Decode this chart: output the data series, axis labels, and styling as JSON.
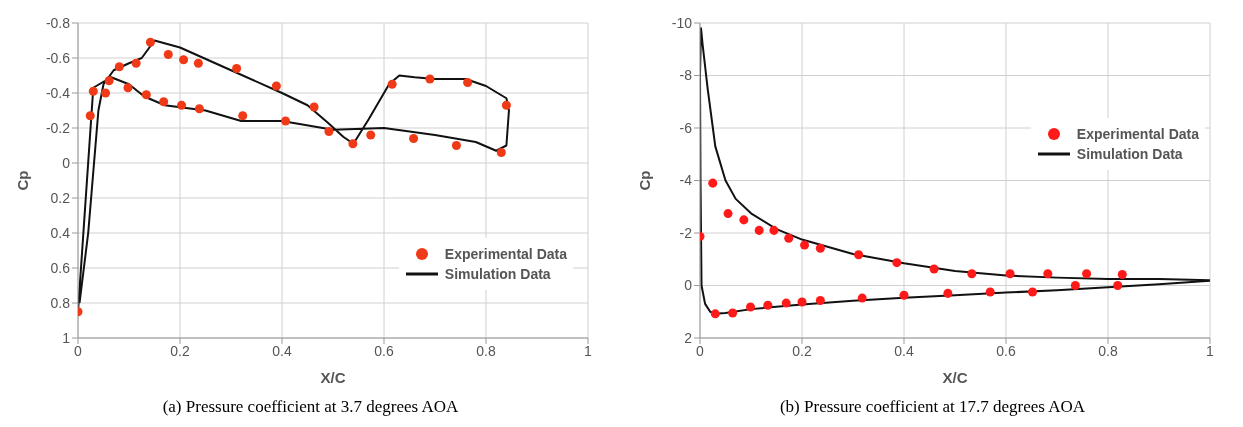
{
  "chart_data": [
    {
      "type": "scatter",
      "title": "(a) Pressure coefficient at 3.7 degrees AOA",
      "xlabel": "X/C",
      "ylabel": "Cp",
      "xlim": [
        0,
        1
      ],
      "xticks": [
        0,
        0.2,
        0.4,
        0.6,
        0.8,
        1
      ],
      "ylim": [
        1,
        -0.8
      ],
      "yticks": [
        -0.8,
        -0.6,
        -0.4,
        -0.2,
        0,
        0.2,
        0.4,
        0.6,
        0.8,
        1
      ],
      "grid": true,
      "legend": "bottom right",
      "line_style": "solid",
      "series": [
        {
          "name": "Experimental Data",
          "type": "scatter",
          "marker": "circle",
          "color": "#f03a17",
          "x": [
            0,
            0.024,
            0.03,
            0.054,
            0.061,
            0.081,
            0.098,
            0.114,
            0.134,
            0.142,
            0.168,
            0.177,
            0.203,
            0.207,
            0.238,
            0.236,
            0.311,
            0.323,
            0.389,
            0.407,
            0.463,
            0.492,
            0.539,
            0.574,
            0.616,
            0.658,
            0.69,
            0.742,
            0.764,
            0.83,
            0.84
          ],
          "values": [
            0.85,
            -0.27,
            -0.41,
            -0.4,
            -0.47,
            -0.55,
            -0.43,
            -0.57,
            -0.39,
            -0.69,
            -0.35,
            -0.62,
            -0.33,
            -0.59,
            -0.31,
            -0.57,
            -0.54,
            -0.27,
            -0.44,
            -0.24,
            -0.32,
            -0.18,
            -0.11,
            -0.16,
            -0.45,
            -0.14,
            -0.48,
            -0.1,
            -0.46,
            -0.06,
            -0.33
          ]
        },
        {
          "name": "Simulation Data",
          "type": "line",
          "marker": "none",
          "color": "#111111",
          "x": [
            0,
            0.03,
            0.065,
            0.1,
            0.13,
            0.17,
            0.25,
            0.32,
            0.4,
            0.5,
            0.6,
            0.7,
            0.78,
            0.82,
            0.84,
            0.845,
            0.84,
            0.8,
            0.76,
            0.7,
            0.66,
            0.63,
            0.61,
            0.57,
            0.54,
            0.52,
            0.49,
            0.45,
            0.4,
            0.3,
            0.2,
            0.15,
            0.125,
            0.1,
            0.07,
            0.05,
            0.04,
            0.02,
            0.003
          ],
          "values": [
            0.85,
            -0.43,
            -0.49,
            -0.45,
            -0.38,
            -0.33,
            -0.3,
            -0.24,
            -0.24,
            -0.19,
            -0.2,
            -0.16,
            -0.12,
            -0.07,
            -0.1,
            -0.3,
            -0.37,
            -0.44,
            -0.48,
            -0.48,
            -0.49,
            -0.5,
            -0.45,
            -0.25,
            -0.11,
            -0.15,
            -0.23,
            -0.33,
            -0.4,
            -0.53,
            -0.66,
            -0.7,
            -0.6,
            -0.57,
            -0.53,
            -0.45,
            -0.3,
            0.4,
            0.8
          ]
        }
      ]
    },
    {
      "type": "scatter",
      "title": "(b) Pressure coefficient at 17.7 degrees AOA",
      "xlabel": "X/C",
      "ylabel": "Cp",
      "xlim": [
        0,
        1
      ],
      "xticks": [
        0,
        0.2,
        0.4,
        0.6,
        0.8,
        1
      ],
      "ylim": [
        2,
        -10
      ],
      "yticks": [
        -10,
        -8,
        -6,
        -4,
        -2,
        0,
        2
      ],
      "grid": true,
      "legend": "top right",
      "line_style": "solid",
      "series": [
        {
          "name": "Experimental Data",
          "type": "scatter",
          "marker": "circle",
          "color": "#ff1a1a",
          "x": [
            0,
            0.025,
            0.055,
            0.086,
            0.116,
            0.145,
            0.174,
            0.205,
            0.236,
            0.311,
            0.386,
            0.459,
            0.533,
            0.608,
            0.682,
            0.758,
            0.828,
            0.736,
            0.819,
            0.03,
            0.064,
            0.099,
            0.133,
            0.169,
            0.2,
            0.236,
            0.318,
            0.4,
            0.486,
            0.569,
            0.652
          ],
          "values": [
            -1.87,
            -3.9,
            -2.74,
            -2.5,
            -2.1,
            -2.1,
            -1.8,
            -1.54,
            -1.42,
            -1.17,
            -0.87,
            -0.63,
            -0.45,
            -0.45,
            -0.45,
            -0.45,
            -0.42,
            0,
            0,
            1.08,
            1.05,
            0.82,
            0.75,
            0.67,
            0.63,
            0.57,
            0.48,
            0.37,
            0.3,
            0.25,
            0.25
          ]
        },
        {
          "name": "Simulation Data",
          "type": "line",
          "marker": "none",
          "color": "#111111",
          "x": [
            1,
            0.9,
            0.8,
            0.7,
            0.6,
            0.5,
            0.4,
            0.3,
            0.2,
            0.15,
            0.1,
            0.07,
            0.05,
            0.03,
            0.015,
            0.005,
            0.002,
            0,
            0.001,
            0.003,
            0.01,
            0.02,
            0.03,
            0.05,
            0.1,
            0.2,
            0.3,
            0.4,
            0.5,
            0.6,
            0.7,
            0.8,
            0.9,
            1
          ],
          "values": [
            -0.2,
            -0.25,
            -0.25,
            -0.3,
            -0.38,
            -0.55,
            -0.85,
            -1.2,
            -1.75,
            -2.15,
            -2.75,
            -3.3,
            -4,
            -5.3,
            -7.5,
            -9.2,
            -9.8,
            -8,
            -4,
            0,
            0.7,
            1,
            1.08,
            1.05,
            0.9,
            0.72,
            0.58,
            0.47,
            0.37,
            0.27,
            0.18,
            0.07,
            -0.05,
            -0.18
          ]
        }
      ]
    }
  ]
}
